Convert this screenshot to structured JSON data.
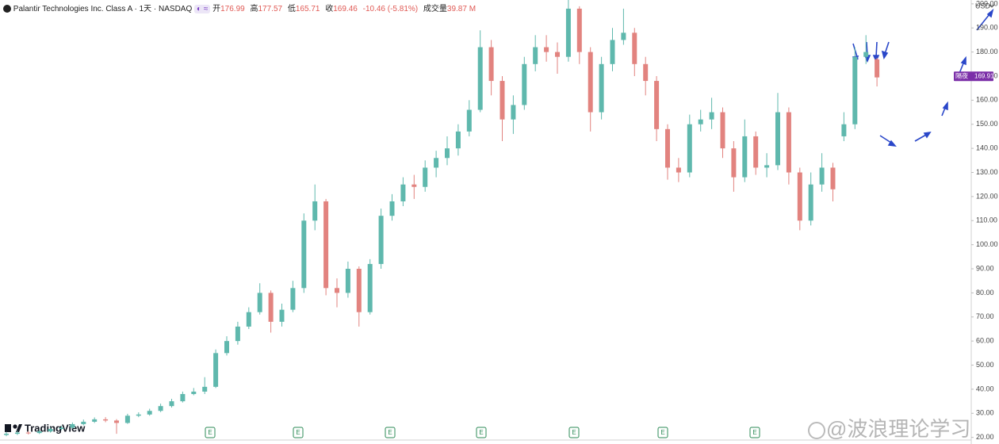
{
  "chart_data": {
    "type": "candlestick",
    "title": "Palantir Technologies Inc. Class A · 1天 · NASDAQ",
    "ohlc_header": {
      "open_label": "开",
      "open": "176.99",
      "high_label": "高",
      "high": "177.57",
      "low_label": "低",
      "low": "165.71",
      "close_label": "收",
      "close": "169.46",
      "change": "-10.46 (-5.81%)",
      "volume_label": "成交量",
      "volume": "39.87 M"
    },
    "currency": "USD",
    "price_tag": {
      "label": "隔夜",
      "value": 169.91
    },
    "earnings_markers": [
      "E",
      "E",
      "E",
      "E",
      "E",
      "E",
      "E"
    ],
    "brand": "TradingView",
    "watermark": "@波浪理论学习",
    "up_color": "#5fb8ad",
    "down_color": "#e2837f",
    "ylim": [
      18.9,
      201.6
    ],
    "yticks": [
      {
        "value": 20,
        "label": "20.00"
      },
      {
        "value": 30,
        "label": "30.00"
      },
      {
        "value": 40,
        "label": "40.00"
      },
      {
        "value": 50,
        "label": "50.00"
      },
      {
        "value": 60,
        "label": "60.00"
      },
      {
        "value": 70,
        "label": "70.00"
      },
      {
        "value": 80,
        "label": "80.00"
      },
      {
        "value": 90,
        "label": "90.00"
      },
      {
        "value": 100,
        "label": "100.00"
      },
      {
        "value": 110,
        "label": "110.00"
      },
      {
        "value": 120,
        "label": "120.00"
      },
      {
        "value": 130,
        "label": "130.00"
      },
      {
        "value": 140,
        "label": "140.00"
      },
      {
        "value": 150,
        "label": "150.00"
      },
      {
        "value": 160,
        "label": "160.00"
      },
      {
        "value": 170,
        "label": "170.00"
      },
      {
        "value": 180,
        "label": "180.00"
      },
      {
        "value": 190,
        "label": "190.00"
      },
      {
        "value": 200,
        "label": "200.00"
      }
    ],
    "open": [
      21,
      21.5,
      22,
      21.8,
      22.5,
      23.5,
      24,
      25.5,
      26.5,
      27.5,
      27,
      26,
      29,
      29.5,
      31,
      33,
      35,
      38,
      39,
      41,
      55,
      60,
      66,
      72,
      80,
      68,
      73,
      82,
      110,
      118,
      82,
      80,
      90,
      72,
      92,
      112,
      118,
      125,
      124,
      132,
      136,
      140,
      147,
      156,
      182,
      168,
      152,
      158,
      175,
      182,
      180,
      178,
      198,
      180,
      155,
      175,
      185,
      188,
      175,
      168,
      148,
      132,
      130,
      150,
      152,
      155,
      140,
      128,
      145,
      132,
      133,
      155,
      130,
      110,
      125,
      132,
      145,
      150,
      178,
      176.99
    ],
    "high": [
      22.3,
      22.8,
      22.6,
      23.2,
      24.2,
      24.8,
      26.2,
      27.4,
      28.3,
      28.4,
      27.6,
      29.8,
      30.4,
      31.9,
      34,
      36,
      39,
      40.5,
      45,
      56.5,
      62,
      68,
      74,
      84,
      81,
      75.5,
      85,
      113,
      125,
      119,
      86,
      93,
      91,
      94,
      115,
      121,
      128,
      129,
      135,
      139,
      145,
      150,
      160,
      189,
      185,
      170,
      162,
      178,
      187,
      187,
      184,
      205,
      199,
      182,
      178,
      190,
      198,
      190,
      178,
      170,
      150,
      136,
      154,
      156,
      161,
      157,
      143,
      152,
      147,
      138,
      163,
      157,
      132,
      130,
      138,
      134,
      155,
      182,
      187,
      177.57
    ],
    "low": [
      20.5,
      21,
      21.2,
      21.4,
      22,
      23,
      23.6,
      25,
      26,
      26.3,
      21.5,
      25.6,
      28.4,
      29,
      30.5,
      32.4,
      34.5,
      37.5,
      38,
      40.5,
      54,
      58.5,
      65,
      71,
      63.5,
      66,
      72,
      80,
      106,
      79,
      74,
      78,
      66,
      71,
      90,
      110,
      116,
      119,
      122,
      128,
      133,
      137,
      145,
      155,
      162,
      143,
      146,
      156,
      172,
      176,
      171,
      176,
      175,
      147,
      152,
      172,
      183,
      170,
      162,
      143,
      127,
      126,
      128,
      147,
      148,
      136,
      122,
      126,
      129,
      128,
      131,
      125,
      106,
      108,
      122,
      118,
      143,
      148,
      175,
      165.71
    ],
    "close": [
      21.5,
      22,
      21.8,
      22.5,
      23.5,
      24,
      25.5,
      26.5,
      27.5,
      27,
      26,
      29,
      29.5,
      31,
      33,
      35,
      38,
      39,
      41,
      55,
      60,
      66,
      72,
      80,
      68,
      73,
      82,
      110,
      118,
      82,
      80,
      90,
      72,
      92,
      112,
      118,
      125,
      124,
      132,
      136,
      140,
      147,
      156,
      182,
      168,
      152,
      158,
      175,
      182,
      180,
      178,
      198,
      180,
      155,
      175,
      185,
      188,
      175,
      168,
      148,
      132,
      130,
      150,
      152,
      155,
      140,
      128,
      145,
      132,
      133,
      155,
      130,
      110,
      125,
      132,
      123,
      150,
      178,
      180,
      169.46
    ]
  }
}
